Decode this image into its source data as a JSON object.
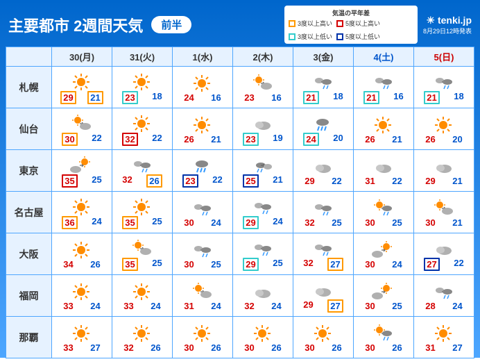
{
  "header": {
    "title": "主要都市 2週間天気",
    "badge": "前半",
    "legend_title": "気温の平年差",
    "legend": [
      {
        "color": "#ff9900",
        "label": "3度以上高い"
      },
      {
        "color": "#d40000",
        "label": "5度以上高い"
      },
      {
        "color": "#33cccc",
        "label": "3度以上低い"
      },
      {
        "color": "#0033aa",
        "label": "5度以上低い"
      }
    ],
    "brand": "tenki.jp",
    "issued": "8月29日12時発表"
  },
  "days": [
    {
      "label": "30(月)",
      "cls": ""
    },
    {
      "label": "31(火)",
      "cls": ""
    },
    {
      "label": "1(水)",
      "cls": ""
    },
    {
      "label": "2(木)",
      "cls": ""
    },
    {
      "label": "3(金)",
      "cls": ""
    },
    {
      "label": "4(土)",
      "cls": "sat"
    },
    {
      "label": "5(日)",
      "cls": "sun"
    }
  ],
  "cities": [
    {
      "name": "札幌",
      "cells": [
        {
          "icon": "sun",
          "hi": 29,
          "hi_box": "#ff9900",
          "lo": 21,
          "lo_box": "#ff9900"
        },
        {
          "icon": "sun",
          "hi": 23,
          "hi_box": "#33cccc",
          "lo": 18
        },
        {
          "icon": "sun",
          "hi": 24,
          "lo": 16
        },
        {
          "icon": "sun-cloud",
          "hi": 23,
          "lo": 16
        },
        {
          "icon": "cloud-rain",
          "hi": 21,
          "hi_box": "#33cccc",
          "lo": 18
        },
        {
          "icon": "cloud-rain",
          "hi": 21,
          "hi_box": "#33cccc",
          "lo": 16
        },
        {
          "icon": "cloud-rain",
          "hi": 21,
          "hi_box": "#33cccc",
          "lo": 18
        }
      ]
    },
    {
      "name": "仙台",
      "cells": [
        {
          "icon": "sun-cloud",
          "hi": 30,
          "hi_box": "#ff9900",
          "lo": 22
        },
        {
          "icon": "sun",
          "hi": 32,
          "hi_box": "#d40000",
          "lo": 22
        },
        {
          "icon": "sun",
          "hi": 26,
          "lo": 21
        },
        {
          "icon": "cloud",
          "hi": 23,
          "hi_box": "#33cccc",
          "lo": 19
        },
        {
          "icon": "rain",
          "hi": 24,
          "hi_box": "#33cccc",
          "lo": 20
        },
        {
          "icon": "sun",
          "hi": 26,
          "lo": 21
        },
        {
          "icon": "sun",
          "hi": 26,
          "lo": 20
        }
      ]
    },
    {
      "name": "東京",
      "cells": [
        {
          "icon": "cloud-sun",
          "hi": 35,
          "hi_box": "#d40000",
          "lo": 25
        },
        {
          "icon": "cloud-rain",
          "hi": 32,
          "lo": 26,
          "lo_box": "#ff9900"
        },
        {
          "icon": "rain",
          "hi": 23,
          "hi_box": "#0033aa",
          "lo": 22
        },
        {
          "icon": "rain-cloud",
          "hi": 25,
          "hi_box": "#0033aa",
          "lo": 21
        },
        {
          "icon": "cloud",
          "hi": 29,
          "lo": 22
        },
        {
          "icon": "cloud",
          "hi": 31,
          "lo": 22
        },
        {
          "icon": "cloud",
          "hi": 29,
          "lo": 21
        }
      ]
    },
    {
      "name": "名古屋",
      "cells": [
        {
          "icon": "sun",
          "hi": 36,
          "hi_box": "#ff9900",
          "lo": 24
        },
        {
          "icon": "sun",
          "hi": 35,
          "hi_box": "#ff9900",
          "lo": 25
        },
        {
          "icon": "cloud-rain",
          "hi": 30,
          "lo": 24
        },
        {
          "icon": "cloud-rain",
          "hi": 29,
          "hi_box": "#33cccc",
          "lo": 24
        },
        {
          "icon": "cloud-rain",
          "hi": 32,
          "lo": 25
        },
        {
          "icon": "sun-rain",
          "hi": 30,
          "lo": 25
        },
        {
          "icon": "sun-cloud",
          "hi": 30,
          "lo": 21
        }
      ]
    },
    {
      "name": "大阪",
      "cells": [
        {
          "icon": "sun",
          "hi": 34,
          "lo": 26
        },
        {
          "icon": "sun-cloud",
          "hi": 35,
          "hi_box": "#ff9900",
          "lo": 25
        },
        {
          "icon": "cloud-rain",
          "hi": 30,
          "lo": 25
        },
        {
          "icon": "cloud-rain",
          "hi": 29,
          "hi_box": "#33cccc",
          "lo": 25
        },
        {
          "icon": "cloud-rain",
          "hi": 32,
          "lo": 27,
          "lo_box": "#ff9900"
        },
        {
          "icon": "cloud-sun",
          "hi": 30,
          "lo": 24
        },
        {
          "icon": "cloud",
          "hi": 27,
          "hi_box": "#0033aa",
          "lo": 22
        }
      ]
    },
    {
      "name": "福岡",
      "cells": [
        {
          "icon": "sun",
          "hi": 33,
          "lo": 24
        },
        {
          "icon": "sun",
          "hi": 33,
          "lo": 24
        },
        {
          "icon": "sun-cloud",
          "hi": 31,
          "lo": 24
        },
        {
          "icon": "cloud",
          "hi": 32,
          "lo": 24
        },
        {
          "icon": "cloud",
          "hi": 29,
          "lo": 27,
          "lo_box": "#ff9900"
        },
        {
          "icon": "cloud-sun",
          "hi": 30,
          "lo": 25
        },
        {
          "icon": "cloud-rain",
          "hi": 28,
          "lo": 24
        }
      ]
    },
    {
      "name": "那覇",
      "cells": [
        {
          "icon": "sun",
          "hi": 33,
          "lo": 27
        },
        {
          "icon": "sun",
          "hi": 32,
          "lo": 26
        },
        {
          "icon": "sun",
          "hi": 30,
          "lo": 26
        },
        {
          "icon": "sun",
          "hi": 30,
          "lo": 26
        },
        {
          "icon": "sun",
          "hi": 30,
          "lo": 26
        },
        {
          "icon": "sun-rain",
          "hi": 30,
          "lo": 26
        },
        {
          "icon": "sun",
          "hi": 31,
          "lo": 27
        }
      ]
    }
  ]
}
